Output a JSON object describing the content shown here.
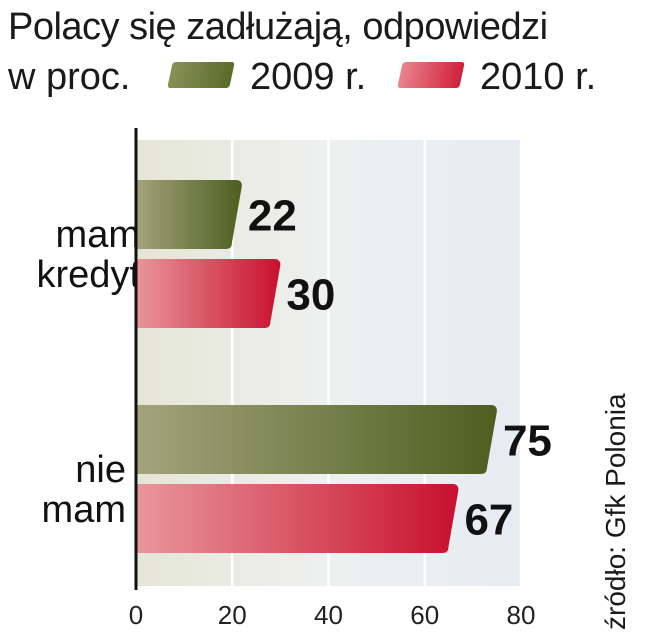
{
  "chart_data": {
    "type": "bar",
    "orientation": "horizontal",
    "title": "Polacy się zadłużają, odpowiedzi",
    "subtitle": "w proc.",
    "categories": [
      [
        "mam",
        "kredyt"
      ],
      [
        "nie",
        "mam"
      ]
    ],
    "series": [
      {
        "name": "2009 r.",
        "color": "#5a6a2a",
        "values": [
          22,
          75
        ]
      },
      {
        "name": "2010 r.",
        "color": "#d01f3c",
        "values": [
          30,
          67
        ]
      }
    ],
    "xlim": [
      0,
      80
    ],
    "xticks": [
      "0",
      "20",
      "40",
      "60",
      "80"
    ],
    "grid": true,
    "data_labels": true,
    "source": "źródło: Gfk Polonia"
  }
}
